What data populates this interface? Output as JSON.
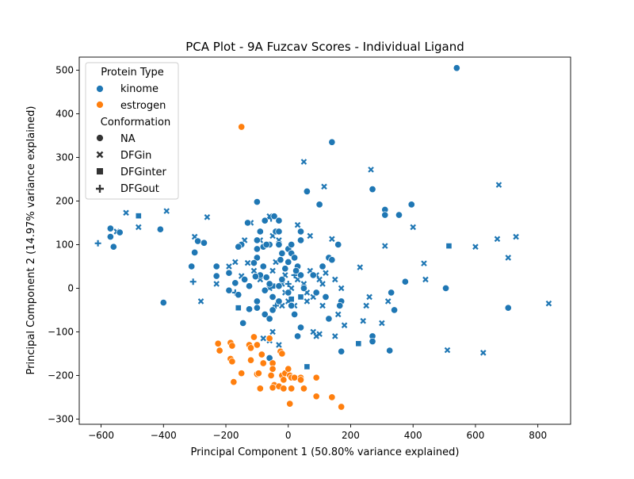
{
  "chart_data": {
    "type": "scatter",
    "title": "PCA Plot - 9A Fuzcav Scores - Individual Ligand",
    "xlabel": "Principal Component 1 (50.80% variance explained)",
    "ylabel": "Principal Component 2 (14.97% variance explained)",
    "xlim": [
      -670,
      905
    ],
    "ylim": [
      -312,
      530
    ],
    "xticks": [
      -600,
      -400,
      -200,
      0,
      200,
      400,
      600,
      800
    ],
    "yticks": [
      -300,
      -200,
      -100,
      0,
      100,
      200,
      300,
      400,
      500
    ],
    "grid": false,
    "legend": {
      "placement": "top-left",
      "hue_title": "Protein Type",
      "hue_entries": [
        {
          "label": "kinome",
          "color": "#1f77b4"
        },
        {
          "label": "estrogen",
          "color": "#ff7f0e"
        }
      ],
      "style_title": "Conformation",
      "style_entries": [
        {
          "label": "NA",
          "marker": "circle"
        },
        {
          "label": "DFGin",
          "marker": "x"
        },
        {
          "label": "DFGinter",
          "marker": "square"
        },
        {
          "label": "DFGout",
          "marker": "plus"
        }
      ]
    },
    "colors": {
      "kinome": "#1f77b4",
      "estrogen": "#ff7f0e"
    },
    "points": {
      "kinome_NA": [
        [
          540,
          505
        ],
        [
          140,
          335
        ],
        [
          270,
          227
        ],
        [
          60,
          222
        ],
        [
          100,
          192
        ],
        [
          395,
          192
        ],
        [
          310,
          180
        ],
        [
          355,
          168
        ],
        [
          310,
          168
        ],
        [
          -100,
          198
        ],
        [
          -410,
          135
        ],
        [
          -570,
          137
        ],
        [
          -570,
          118
        ],
        [
          -560,
          95
        ],
        [
          -540,
          128
        ],
        [
          -290,
          108
        ],
        [
          -270,
          104
        ],
        [
          -300,
          82
        ],
        [
          -310,
          50
        ],
        [
          -230,
          50
        ],
        [
          -190,
          35
        ],
        [
          -230,
          28
        ],
        [
          -170,
          12
        ],
        [
          -190,
          -5
        ],
        [
          -160,
          -15
        ],
        [
          -140,
          20
        ],
        [
          -125,
          5
        ],
        [
          -125,
          -48
        ],
        [
          -100,
          -30
        ],
        [
          -100,
          -45
        ],
        [
          -145,
          -80
        ],
        [
          -75,
          -60
        ],
        [
          -60,
          -70
        ],
        [
          -50,
          -50
        ],
        [
          -60,
          -160
        ],
        [
          -100,
          110
        ],
        [
          -80,
          95
        ],
        [
          -100,
          90
        ],
        [
          -100,
          70
        ],
        [
          -80,
          50
        ],
        [
          -110,
          58
        ],
        [
          -90,
          30
        ],
        [
          -105,
          27
        ],
        [
          -70,
          25
        ],
        [
          -60,
          10
        ],
        [
          -75,
          -5
        ],
        [
          -50,
          -20
        ],
        [
          -30,
          -30
        ],
        [
          -30,
          5
        ],
        [
          -20,
          20
        ],
        [
          -10,
          45
        ],
        [
          0,
          60
        ],
        [
          -20,
          80
        ],
        [
          -30,
          100
        ],
        [
          -40,
          130
        ],
        [
          0,
          90
        ],
        [
          10,
          80
        ],
        [
          20,
          70
        ],
        [
          30,
          50
        ],
        [
          40,
          30
        ],
        [
          0,
          -10
        ],
        [
          10,
          -40
        ],
        [
          20,
          -60
        ],
        [
          40,
          -90
        ],
        [
          30,
          -110
        ],
        [
          40,
          110
        ],
        [
          40,
          130
        ],
        [
          -130,
          150
        ],
        [
          -150,
          100
        ],
        [
          -160,
          95
        ],
        [
          -90,
          130
        ],
        [
          -75,
          155
        ],
        [
          -45,
          165
        ],
        [
          -30,
          155
        ],
        [
          -30,
          130
        ],
        [
          -60,
          100
        ],
        [
          -25,
          65
        ],
        [
          10,
          100
        ],
        [
          25,
          40
        ],
        [
          50,
          0
        ],
        [
          80,
          30
        ],
        [
          90,
          -10
        ],
        [
          120,
          -20
        ],
        [
          110,
          50
        ],
        [
          130,
          70
        ],
        [
          140,
          65
        ],
        [
          160,
          100
        ],
        [
          170,
          -30
        ],
        [
          165,
          -40
        ],
        [
          130,
          -70
        ],
        [
          170,
          -145
        ],
        [
          270,
          -110
        ],
        [
          270,
          -122
        ],
        [
          325,
          -143
        ],
        [
          340,
          -50
        ],
        [
          330,
          -10
        ],
        [
          375,
          15
        ],
        [
          505,
          0
        ],
        [
          705,
          -45
        ],
        [
          -400,
          -33
        ],
        [
          -70,
          100
        ]
      ],
      "kinome_DFGin": [
        [
          50,
          290
        ],
        [
          265,
          272
        ],
        [
          675,
          237
        ],
        [
          115,
          233
        ],
        [
          -260,
          163
        ],
        [
          -390,
          177
        ],
        [
          -520,
          173
        ],
        [
          -480,
          140
        ],
        [
          -300,
          118
        ],
        [
          -550,
          130
        ],
        [
          -60,
          165
        ],
        [
          30,
          145
        ],
        [
          140,
          113
        ],
        [
          400,
          140
        ],
        [
          310,
          97
        ],
        [
          600,
          95
        ],
        [
          670,
          113
        ],
        [
          730,
          118
        ],
        [
          705,
          70
        ],
        [
          435,
          57
        ],
        [
          440,
          20
        ],
        [
          835,
          -35
        ],
        [
          510,
          -142
        ],
        [
          625,
          -148
        ],
        [
          -280,
          -30
        ],
        [
          -230,
          10
        ],
        [
          -190,
          50
        ],
        [
          -170,
          60
        ],
        [
          -130,
          58
        ],
        [
          -110,
          40
        ],
        [
          -90,
          20
        ],
        [
          -60,
          0
        ],
        [
          -50,
          40
        ],
        [
          -20,
          10
        ],
        [
          10,
          0
        ],
        [
          30,
          20
        ],
        [
          50,
          10
        ],
        [
          70,
          40
        ],
        [
          90,
          30
        ],
        [
          100,
          20
        ],
        [
          120,
          35
        ],
        [
          110,
          10
        ],
        [
          80,
          -20
        ],
        [
          110,
          -40
        ],
        [
          60,
          -30
        ],
        [
          20,
          -40
        ],
        [
          0,
          -30
        ],
        [
          -20,
          -40
        ],
        [
          -50,
          -100
        ],
        [
          -30,
          -130
        ],
        [
          -60,
          -120
        ],
        [
          -80,
          -115
        ],
        [
          80,
          -100
        ],
        [
          90,
          -110
        ],
        [
          100,
          -105
        ],
        [
          150,
          -110
        ],
        [
          160,
          -60
        ],
        [
          170,
          0
        ],
        [
          180,
          -85
        ],
        [
          230,
          48
        ],
        [
          260,
          -20
        ],
        [
          250,
          -40
        ],
        [
          240,
          -75
        ],
        [
          300,
          -80
        ],
        [
          320,
          -30
        ],
        [
          -140,
          110
        ],
        [
          -120,
          150
        ],
        [
          -90,
          110
        ],
        [
          -50,
          120
        ],
        [
          -30,
          110
        ],
        [
          -10,
          30
        ],
        [
          -10,
          -10
        ],
        [
          60,
          -10
        ],
        [
          70,
          120
        ],
        [
          150,
          20
        ],
        [
          -150,
          28
        ],
        [
          -40,
          60
        ]
      ],
      "kinome_DFGinter": [
        [
          -480,
          166
        ],
        [
          515,
          97
        ],
        [
          225,
          -127
        ],
        [
          60,
          -180
        ],
        [
          -160,
          -45
        ],
        [
          -50,
          5
        ],
        [
          40,
          -20
        ],
        [
          10,
          -25
        ]
      ],
      "kinome_DFGout": [
        [
          -610,
          103
        ],
        [
          -305,
          15
        ],
        [
          -55,
          160
        ],
        [
          -170,
          -10
        ],
        [
          -40,
          -40
        ],
        [
          0,
          10
        ],
        [
          20,
          30
        ]
      ],
      "estrogen_NA": [
        [
          -150,
          370
        ],
        [
          -225,
          -127
        ],
        [
          -220,
          -143
        ],
        [
          -185,
          -125
        ],
        [
          -180,
          -132
        ],
        [
          -185,
          -162
        ],
        [
          -180,
          -168
        ],
        [
          -175,
          -215
        ],
        [
          -150,
          -195
        ],
        [
          -125,
          -130
        ],
        [
          -120,
          -137
        ],
        [
          -120,
          -165
        ],
        [
          -110,
          -112
        ],
        [
          -100,
          -130
        ],
        [
          -100,
          -197
        ],
        [
          -95,
          -195
        ],
        [
          -85,
          -152
        ],
        [
          -80,
          -172
        ],
        [
          -90,
          -230
        ],
        [
          -60,
          -115
        ],
        [
          -50,
          -172
        ],
        [
          -50,
          -185
        ],
        [
          -55,
          -200
        ],
        [
          -45,
          -222
        ],
        [
          -50,
          -228
        ],
        [
          -30,
          -225
        ],
        [
          -25,
          -145
        ],
        [
          -20,
          -150
        ],
        [
          -20,
          -200
        ],
        [
          -15,
          -210
        ],
        [
          -10,
          -195
        ],
        [
          -15,
          -230
        ],
        [
          0,
          -185
        ],
        [
          5,
          -200
        ],
        [
          10,
          -205
        ],
        [
          10,
          -230
        ],
        [
          5,
          -265
        ],
        [
          20,
          -205
        ],
        [
          40,
          -205
        ],
        [
          40,
          -210
        ],
        [
          50,
          -230
        ],
        [
          90,
          -205
        ],
        [
          90,
          -248
        ],
        [
          140,
          -250
        ],
        [
          170,
          -272
        ]
      ]
    }
  }
}
